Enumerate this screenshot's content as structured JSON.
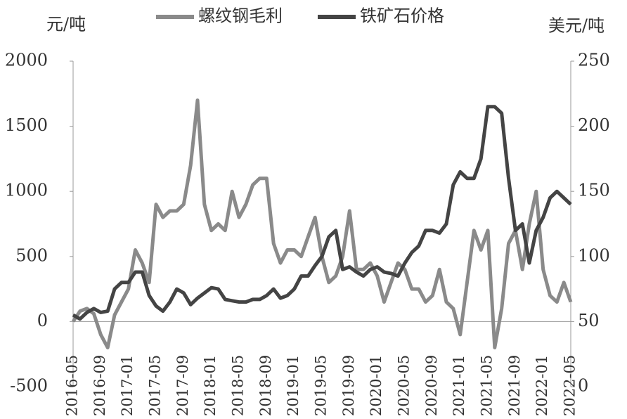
{
  "chart_data": {
    "type": "line",
    "y_label": "元/吨",
    "y2_label": "美元/吨",
    "x": [
      "2016-05",
      "2016-06",
      "2016-07",
      "2016-08",
      "2016-09",
      "2016-10",
      "2016-11",
      "2016-12",
      "2017-01",
      "2017-02",
      "2017-03",
      "2017-04",
      "2017-05",
      "2017-06",
      "2017-07",
      "2017-08",
      "2017-09",
      "2017-10",
      "2017-11",
      "2017-12",
      "2018-01",
      "2018-02",
      "2018-03",
      "2018-04",
      "2018-05",
      "2018-06",
      "2018-07",
      "2018-08",
      "2018-09",
      "2018-10",
      "2018-11",
      "2018-12",
      "2019-01",
      "2019-02",
      "2019-03",
      "2019-04",
      "2019-05",
      "2019-06",
      "2019-07",
      "2019-08",
      "2019-09",
      "2019-10",
      "2019-11",
      "2019-12",
      "2020-01",
      "2020-02",
      "2020-03",
      "2020-04",
      "2020-05",
      "2020-06",
      "2020-07",
      "2020-08",
      "2020-09",
      "2020-10",
      "2020-11",
      "2020-12",
      "2021-01",
      "2021-02",
      "2021-03",
      "2021-04",
      "2021-05",
      "2021-06",
      "2021-07",
      "2021-08",
      "2021-09",
      "2021-10",
      "2021-11",
      "2021-12",
      "2022-01",
      "2022-02",
      "2022-03",
      "2022-04",
      "2022-05"
    ],
    "series": [
      {
        "name": "螺纹钢毛利",
        "color": "#8a8a8a",
        "values": [
          0,
          80,
          100,
          60,
          -100,
          -200,
          50,
          150,
          250,
          550,
          450,
          300,
          900,
          800,
          850,
          850,
          900,
          1200,
          1700,
          900,
          700,
          750,
          700,
          1000,
          800,
          900,
          1050,
          1100,
          1100,
          600,
          450,
          550,
          550,
          500,
          650,
          800,
          500,
          300,
          350,
          500,
          850,
          400,
          400,
          450,
          350,
          150,
          300,
          450,
          400,
          250,
          250,
          150,
          200,
          400,
          150,
          100,
          -100,
          300,
          700,
          550,
          700,
          -200,
          100,
          600,
          700,
          400,
          750,
          1000,
          400,
          200,
          150,
          300,
          150
        ]
      },
      {
        "name": "铁矿石价格",
        "color": "#444444",
        "axis": "y2",
        "values": [
          55,
          52,
          57,
          60,
          57,
          58,
          75,
          80,
          80,
          88,
          88,
          70,
          62,
          58,
          65,
          75,
          72,
          63,
          68,
          72,
          76,
          75,
          67,
          66,
          65,
          65,
          67,
          67,
          70,
          75,
          68,
          70,
          75,
          85,
          85,
          93,
          100,
          115,
          120,
          90,
          92,
          88,
          85,
          90,
          92,
          88,
          87,
          85,
          95,
          103,
          108,
          120,
          120,
          118,
          125,
          155,
          165,
          160,
          160,
          175,
          215,
          215,
          210,
          160,
          120,
          125,
          95,
          120,
          130,
          145,
          150,
          145,
          140
        ]
      }
    ],
    "xtick_step_months": 4,
    "ylim": [
      -500,
      2000
    ],
    "yticks": [
      -500,
      0,
      500,
      1000,
      1500,
      2000
    ],
    "y2lim": [
      0,
      250
    ],
    "y2ticks": [
      0,
      50,
      100,
      150,
      200,
      250
    ],
    "zero_line": true
  }
}
